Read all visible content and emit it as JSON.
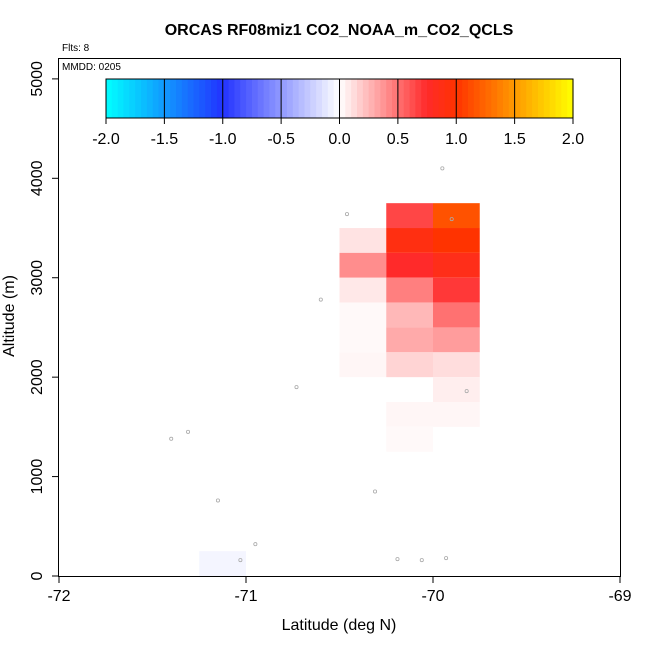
{
  "chart_data": {
    "type": "heatmap",
    "title": "ORCAS RF08miz1 CO2_NOAA_m_CO2_QCLS",
    "flights_label": "Flts: 8",
    "mmdd_label": "MMDD: 0205",
    "xlabel": "Latitude (deg N)",
    "ylabel": "Altitude (m)",
    "xlim": [
      -72,
      -69
    ],
    "ylim": [
      0,
      5200
    ],
    "xticks": [
      -72,
      -71,
      -70,
      -69
    ],
    "xtick_labels": [
      "-72",
      "-71",
      "-70",
      "-69"
    ],
    "yticks": [
      0,
      1000,
      2000,
      3000,
      4000,
      5000
    ],
    "ytick_labels": [
      "0",
      "1000",
      "2000",
      "3000",
      "4000",
      "5000"
    ],
    "colorbar": {
      "range": [
        -2,
        2
      ],
      "ticks": [
        -2,
        -1.5,
        -1,
        -0.5,
        0,
        0.5,
        1,
        1.5,
        2
      ],
      "tick_labels": [
        "-2.0",
        "-1.5",
        "-1.0",
        "-0.5",
        "0.0",
        "0.5",
        "1.0",
        "1.5",
        "2.0"
      ],
      "stops": [
        {
          "v": -2.0,
          "color": "#00ffff"
        },
        {
          "v": -1.0,
          "color": "#2233ff"
        },
        {
          "v": 0.0,
          "color": "#ffffff"
        },
        {
          "v": 0.75,
          "color": "#ff2a2a"
        },
        {
          "v": 1.0,
          "color": "#ff3300"
        },
        {
          "v": 2.0,
          "color": "#ffff00"
        }
      ]
    },
    "cells": [
      {
        "lat0": -71.25,
        "lat1": -71.0,
        "alt0": 0,
        "alt1": 250,
        "value": -0.05
      },
      {
        "lat0": -70.5,
        "lat1": -70.25,
        "alt0": 3250,
        "alt1": 3500,
        "value": 0.1
      },
      {
        "lat0": -70.5,
        "lat1": -70.25,
        "alt0": 3000,
        "alt1": 3250,
        "value": 0.4
      },
      {
        "lat0": -70.5,
        "lat1": -70.25,
        "alt0": 2750,
        "alt1": 3000,
        "value": 0.08
      },
      {
        "lat0": -70.5,
        "lat1": -70.25,
        "alt0": 2500,
        "alt1": 2750,
        "value": 0.02
      },
      {
        "lat0": -70.5,
        "lat1": -70.25,
        "alt0": 2250,
        "alt1": 2500,
        "value": 0.02
      },
      {
        "lat0": -70.5,
        "lat1": -70.25,
        "alt0": 2000,
        "alt1": 2250,
        "value": 0.03
      },
      {
        "lat0": -70.25,
        "lat1": -70.0,
        "alt0": 3500,
        "alt1": 3750,
        "value": 0.65
      },
      {
        "lat0": -70.25,
        "lat1": -70.0,
        "alt0": 3250,
        "alt1": 3500,
        "value": 0.9
      },
      {
        "lat0": -70.25,
        "lat1": -70.0,
        "alt0": 3000,
        "alt1": 3250,
        "value": 0.75
      },
      {
        "lat0": -70.25,
        "lat1": -70.0,
        "alt0": 2750,
        "alt1": 3000,
        "value": 0.45
      },
      {
        "lat0": -70.25,
        "lat1": -70.0,
        "alt0": 2500,
        "alt1": 2750,
        "value": 0.25
      },
      {
        "lat0": -70.25,
        "lat1": -70.0,
        "alt0": 2250,
        "alt1": 2500,
        "value": 0.3
      },
      {
        "lat0": -70.25,
        "lat1": -70.0,
        "alt0": 2000,
        "alt1": 2250,
        "value": 0.15
      },
      {
        "lat0": -70.25,
        "lat1": -70.0,
        "alt0": 1500,
        "alt1": 1750,
        "value": 0.03
      },
      {
        "lat0": -70.25,
        "lat1": -70.0,
        "alt0": 1250,
        "alt1": 1500,
        "value": 0.02
      },
      {
        "lat0": -70.0,
        "lat1": -69.75,
        "alt0": 3500,
        "alt1": 3750,
        "value": 1.15
      },
      {
        "lat0": -70.0,
        "lat1": -69.75,
        "alt0": 3250,
        "alt1": 3500,
        "value": 1.0
      },
      {
        "lat0": -70.0,
        "lat1": -69.75,
        "alt0": 3000,
        "alt1": 3250,
        "value": 0.85
      },
      {
        "lat0": -70.0,
        "lat1": -69.75,
        "alt0": 2750,
        "alt1": 3000,
        "value": 0.7
      },
      {
        "lat0": -70.0,
        "lat1": -69.75,
        "alt0": 2500,
        "alt1": 2750,
        "value": 0.5
      },
      {
        "lat0": -70.0,
        "lat1": -69.75,
        "alt0": 2250,
        "alt1": 2500,
        "value": 0.35
      },
      {
        "lat0": -70.0,
        "lat1": -69.75,
        "alt0": 2000,
        "alt1": 2250,
        "value": 0.12
      },
      {
        "lat0": -70.0,
        "lat1": -69.75,
        "alt0": 1750,
        "alt1": 2000,
        "value": 0.06
      },
      {
        "lat0": -70.0,
        "lat1": -69.75,
        "alt0": 1500,
        "alt1": 1750,
        "value": 0.03
      }
    ],
    "points": [
      {
        "lat": -69.95,
        "alt": 4100
      },
      {
        "lat": -70.46,
        "alt": 3640
      },
      {
        "lat": -69.9,
        "alt": 3590
      },
      {
        "lat": -70.6,
        "alt": 2780
      },
      {
        "lat": -70.73,
        "alt": 1900
      },
      {
        "lat": -69.82,
        "alt": 1860
      },
      {
        "lat": -71.31,
        "alt": 1450
      },
      {
        "lat": -71.4,
        "alt": 1380
      },
      {
        "lat": -70.31,
        "alt": 850
      },
      {
        "lat": -71.15,
        "alt": 760
      },
      {
        "lat": -70.95,
        "alt": 320
      },
      {
        "lat": -71.03,
        "alt": 160
      },
      {
        "lat": -70.19,
        "alt": 170
      },
      {
        "lat": -70.06,
        "alt": 160
      },
      {
        "lat": -69.93,
        "alt": 180
      }
    ]
  }
}
